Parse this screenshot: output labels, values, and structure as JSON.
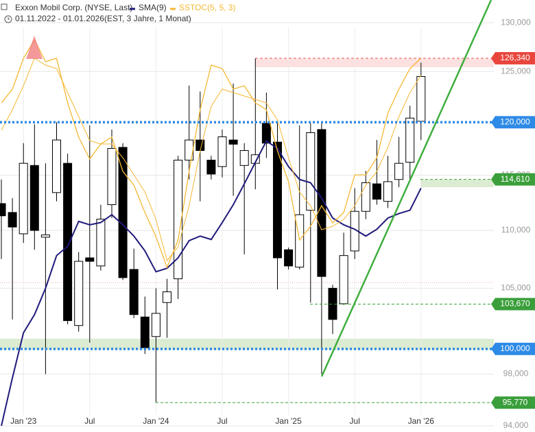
{
  "chart_data": {
    "type": "candlestick",
    "title": "Exxon Mobil Corp. (NYSE, Last)",
    "period": "01.11.2022 - 01.01.2026",
    "subtitle": "(EST, 3 Jahre, 1 Monat)",
    "log_scale": true,
    "grid": true,
    "categories": [
      null,
      null,
      "Jan '23",
      null,
      null,
      null,
      null,
      null,
      "Jul",
      null,
      null,
      null,
      null,
      null,
      "Jan '24",
      null,
      null,
      null,
      null,
      null,
      "Jul",
      null,
      null,
      null,
      null,
      null,
      "Jan '25",
      null,
      null,
      null,
      null,
      null,
      "Jul",
      null,
      null,
      null,
      null,
      null,
      "Jan '26"
    ],
    "open": [
      112.4,
      111.6,
      109.7,
      115.9,
      109.4,
      113.4,
      116.1,
      101.9,
      107.6,
      106.9,
      112.3,
      117.6,
      106.6,
      102.6,
      101.0,
      103.8,
      105.8,
      116.4,
      118.3,
      116.4,
      115.8,
      118.3,
      115.9,
      116.1,
      119.9,
      118.1,
      108.3,
      106.8,
      111.8,
      119.3,
      105.0,
      103.7,
      108.2,
      111.7,
      114.2,
      112.6,
      114.6,
      116.2,
      120.1
    ],
    "high": [
      114.6,
      112.9,
      118.0,
      119.8,
      116.1,
      120.0,
      117.0,
      108.1,
      119.7,
      112.3,
      119.3,
      118.0,
      108.4,
      104.3,
      105.0,
      105.8,
      116.8,
      123.6,
      123.0,
      116.8,
      119.3,
      123.8,
      118.0,
      126.3,
      122.9,
      120.0,
      108.5,
      119.7,
      120.0,
      120.0,
      105.3,
      109.8,
      113.8,
      115.4,
      118.3,
      116.8,
      118.6,
      121.6,
      125.9
    ],
    "low": [
      107.5,
      102.4,
      108.9,
      108.3,
      98.0,
      112.6,
      102.0,
      101.4,
      100.5,
      106.5,
      111.1,
      105.7,
      102.5,
      99.6,
      95.8,
      100.9,
      104.1,
      114.6,
      112.6,
      114.6,
      114.8,
      113.1,
      107.9,
      113.7,
      116.6,
      104.9,
      106.6,
      106.6,
      103.8,
      98.0,
      101.2,
      103.6,
      107.5,
      111.0,
      112.3,
      112.0,
      113.9,
      114.6,
      118.3
    ],
    "close": [
      111.3,
      110.3,
      116.1,
      110.0,
      109.6,
      118.3,
      102.3,
      107.3,
      107.3,
      111.0,
      117.5,
      105.9,
      102.8,
      100.1,
      102.9,
      104.7,
      116.4,
      118.3,
      117.3,
      115.1,
      118.6,
      117.9,
      117.3,
      116.9,
      118.0,
      107.6,
      106.9,
      111.4,
      119.0,
      106.0,
      102.4,
      107.8,
      111.7,
      114.3,
      112.8,
      114.4,
      116.1,
      120.4,
      124.5
    ],
    "series": [
      {
        "name": "SMA(9)",
        "color": "#1f1a7a",
        "values": [
          94.0,
          97.7,
          101.3,
          102.8,
          105.0,
          107.8,
          108.6,
          110.8,
          110.5,
          110.7,
          111.4,
          110.5,
          109.5,
          108.2,
          106.4,
          106.7,
          107.6,
          109.1,
          109.5,
          109.2,
          110.7,
          112.3,
          114.2,
          116.2,
          118.2,
          117.5,
          115.8,
          114.6,
          114.3,
          112.9,
          111.1,
          110.5,
          110.1,
          109.5,
          110.1,
          111.1,
          111.5,
          111.8,
          113.8
        ]
      },
      {
        "name": "SSTOC(5, 5, 3)",
        "color": "#f5b731",
        "axis": "y2",
        "values": [
          76,
          79.2,
          86.4,
          90.7,
          85.6,
          86.4,
          76,
          68,
          62.9,
          66.4,
          68,
          60,
          56.8,
          50.4,
          44.8,
          37.6,
          44,
          60,
          74.4,
          84.8,
          84,
          79.2,
          80,
          76,
          74.4,
          64.8,
          57.6,
          44,
          47.2,
          52,
          48,
          50.4,
          59.2,
          59.2,
          63.2,
          73.6,
          79.2,
          84,
          86.4
        ],
        "signal": [
          69.6,
          74.4,
          80,
          86.4,
          84.8,
          84,
          78.4,
          72.8,
          67.2,
          66.4,
          66.4,
          63.2,
          59.2,
          55.2,
          48.8,
          39.2,
          42.4,
          52,
          64.8,
          75.2,
          79.2,
          78.4,
          77.6,
          76.8,
          76,
          72,
          63.2,
          55.2,
          52,
          46.4,
          47.2,
          48.8,
          52,
          56.8,
          60,
          65.6,
          72.8,
          78.4,
          82.4
        ]
      }
    ],
    "ylim": [
      94,
      132.4
    ],
    "y2lim": [
      0,
      100
    ],
    "yticks": [
      {
        "value": 94,
        "label": "94,000"
      },
      {
        "value": 98,
        "label": "98,000"
      },
      {
        "value": 105,
        "label": "105,000"
      },
      {
        "value": 110,
        "label": "110,000"
      },
      {
        "value": 115,
        "label": "115,000"
      },
      {
        "value": 125,
        "label": "125,000"
      },
      {
        "value": 130,
        "label": "130,000"
      }
    ],
    "levels": [
      {
        "value": 126.34,
        "label": "126,340",
        "color": "#e8453c"
      },
      {
        "value": 120,
        "label": "120,000",
        "color": "#2d8ae6"
      },
      {
        "value": 114.61,
        "label": "114,610",
        "color": "#3a9e3a"
      },
      {
        "value": 103.67,
        "label": "103,670",
        "color": "#3a9e3a"
      },
      {
        "value": 100,
        "label": "100,000",
        "color": "#2d8ae6"
      },
      {
        "value": 95.77,
        "label": "95,770",
        "color": "#3a9e3a"
      }
    ]
  }
}
